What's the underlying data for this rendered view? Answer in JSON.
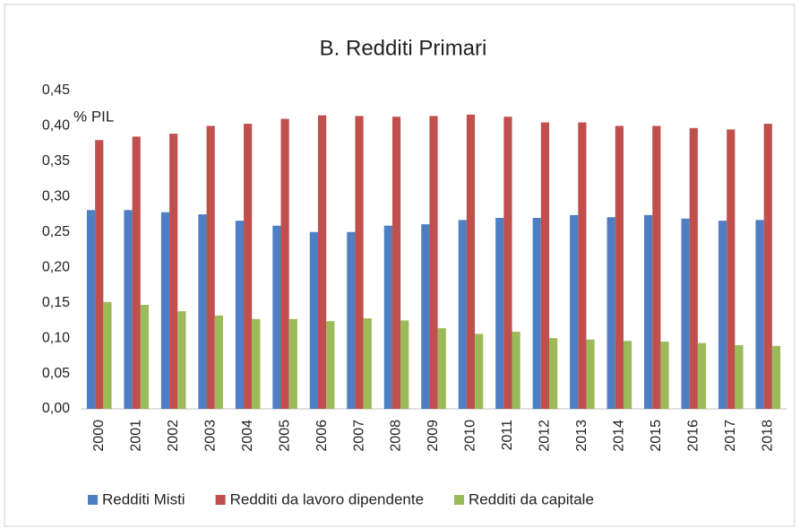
{
  "chart_data": {
    "type": "bar",
    "title": "B. Redditi Primari",
    "annotation": "% PIL",
    "categories": [
      "2000",
      "2001",
      "2002",
      "2003",
      "2004",
      "2005",
      "2006",
      "2007",
      "2008",
      "2009",
      "2010",
      "2011",
      "2012",
      "2013",
      "2014",
      "2015",
      "2016",
      "2017",
      "2018"
    ],
    "series": [
      {
        "name": "Redditi Misti",
        "color": "#4f7ec2",
        "values": [
          0.281,
          0.281,
          0.278,
          0.275,
          0.266,
          0.259,
          0.25,
          0.25,
          0.259,
          0.261,
          0.267,
          0.27,
          0.27,
          0.274,
          0.271,
          0.274,
          0.269,
          0.266,
          0.267
        ]
      },
      {
        "name": "Redditi da lavoro dipendente",
        "color": "#c0504d",
        "values": [
          0.38,
          0.385,
          0.389,
          0.4,
          0.403,
          0.41,
          0.415,
          0.414,
          0.413,
          0.414,
          0.416,
          0.413,
          0.405,
          0.405,
          0.4,
          0.4,
          0.397,
          0.395,
          0.403
        ]
      },
      {
        "name": "Redditi da capitale",
        "color": "#9bbb59",
        "values": [
          0.151,
          0.147,
          0.138,
          0.132,
          0.127,
          0.127,
          0.124,
          0.128,
          0.125,
          0.114,
          0.106,
          0.109,
          0.1,
          0.098,
          0.096,
          0.095,
          0.093,
          0.09,
          0.089
        ]
      }
    ],
    "ylim": [
      0,
      0.45
    ],
    "yticks": [
      {
        "value": 0,
        "label": "0,00"
      },
      {
        "value": 0.05,
        "label": "0,05"
      },
      {
        "value": 0.1,
        "label": "0,10"
      },
      {
        "value": 0.15,
        "label": "0,15"
      },
      {
        "value": 0.2,
        "label": "0,20"
      },
      {
        "value": 0.25,
        "label": "0,25"
      },
      {
        "value": 0.3,
        "label": "0,30"
      },
      {
        "value": 0.35,
        "label": "0,35"
      },
      {
        "value": 0.4,
        "label": "0,40"
      },
      {
        "value": 0.45,
        "label": "0,45"
      }
    ],
    "grid": false,
    "legend": "bottom"
  }
}
